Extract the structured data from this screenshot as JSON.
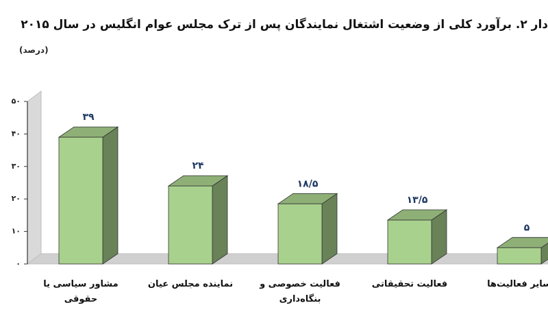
{
  "chart_data": {
    "type": "bar3d",
    "title": "دار ۲. برآورد کلی از وضعیت اشتغال نمایندگان پس از ترک مجلس عوام انگلیس در سال ۲۰۱۵",
    "subtitle": "(درصد)",
    "categories": [
      "مشاور سیاسی یا حقوقی",
      "نماینده مجلس عیان",
      "فعالیت خصوصی و بنگاه‌داری",
      "فعالیت تحقیقاتی",
      "سایر فعالیت‌ها"
    ],
    "values": [
      39,
      24,
      18.5,
      13.5,
      5
    ],
    "value_labels": [
      "۳۹",
      "۲۴",
      "۱۸/۵",
      "۱۳/۵",
      "۵"
    ],
    "color": "#a9d18e",
    "ylim": [
      0,
      50
    ],
    "yticks": [
      {
        "value": 0,
        "label": "۰"
      },
      {
        "value": 10,
        "label": "۱۰"
      },
      {
        "value": 20,
        "label": "۲۰"
      },
      {
        "value": 30,
        "label": "۳۰"
      },
      {
        "value": 40,
        "label": "۴۰"
      },
      {
        "value": 50,
        "label": "۵۰"
      }
    ]
  }
}
